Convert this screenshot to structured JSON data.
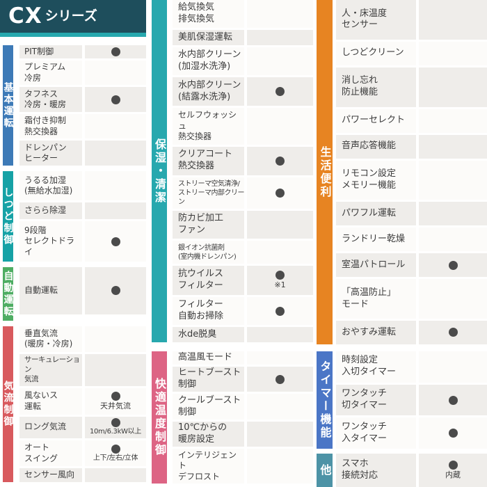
{
  "header": {
    "series_bold": "CX",
    "series_suffix": "シリーズ"
  },
  "colors": {
    "header_bg": "#1e4e5c",
    "accent_underline": "#27a8ae",
    "row_gray": "#efedea",
    "row_white": "#fcfbf9",
    "dot": "#4b4b4b"
  },
  "presence_marker": "●",
  "panels": [
    {
      "container": "left-sections",
      "shade_start": "gray",
      "sections": [
        {
          "id": "basic",
          "label": "基本運転",
          "color": "#3d7ab7",
          "rows": [
            {
              "feature": "PIT制御",
              "dot": true
            },
            {
              "feature": "プレミアム\n冷房",
              "dot": false
            },
            {
              "feature": "タフネス\n冷房・暖房",
              "dot": true
            },
            {
              "feature": "霜付き抑制\n熱交換器",
              "dot": false
            },
            {
              "feature": "ドレンパン\nヒーター",
              "dot": false
            }
          ]
        },
        {
          "id": "humidity",
          "label": "しつど制御",
          "color": "#16a2a6",
          "rows": [
            {
              "feature": "うるる加湿\n(無給水加湿)",
              "dot": false
            },
            {
              "feature": "さらら除湿",
              "dot": false
            },
            {
              "feature": "9段階\nセレクトドライ",
              "dot": true
            }
          ]
        },
        {
          "id": "auto",
          "label": "自動運転",
          "color": "#4ead63",
          "rows": [
            {
              "feature": "自動運転",
              "dot": true
            }
          ]
        },
        {
          "id": "airflow",
          "label": "気流制御",
          "color": "#d85a5e",
          "rows": [
            {
              "feature": "垂直気流\n(暖房・冷房)",
              "dot": false
            },
            {
              "feature": "サーキュレーション\n気流",
              "dot": false
            },
            {
              "feature": "風ないス\n運転",
              "dot": true,
              "note": "天井気流"
            },
            {
              "feature": "ロング気流",
              "dot": true,
              "note": "10m/6.3kW以上"
            },
            {
              "feature": "オート\nスイング",
              "dot": true,
              "note": "上下/左右/立体"
            },
            {
              "feature": "センサー風向",
              "dot": false
            }
          ]
        }
      ]
    },
    {
      "container": "mid-sections",
      "shade_start": "white",
      "sections": [
        {
          "id": "clean",
          "label": "保湿・清潔",
          "color": "#27a8ae",
          "rows": [
            {
              "feature": "給気換気\n排気換気",
              "dot": false
            },
            {
              "feature": "美肌保湿運転",
              "dot": false
            },
            {
              "feature": "水内部クリーン\n(加湿水洗浄)",
              "dot": false
            },
            {
              "feature": "水内部クリーン\n(結露水洗浄)",
              "dot": true
            },
            {
              "feature": "セルフウォッシュ\n熱交換器",
              "dot": false
            },
            {
              "feature": "クリアコート\n熱交換器",
              "dot": true
            },
            {
              "feature": "ストリーマ空気清浄/\nストリーマ内部クリーン",
              "dot": true
            },
            {
              "feature": "防カビ加工\nファン",
              "dot": false
            },
            {
              "feature": "銀イオン抗菌剤\n(室内機ドレンパン)",
              "dot": false
            },
            {
              "feature": "抗ウイルス\nフィルター",
              "dot": true,
              "note": "※1"
            },
            {
              "feature": "フィルター\n自動お掃除",
              "dot": true
            },
            {
              "feature": "水de脱臭",
              "dot": false
            }
          ]
        },
        {
          "id": "comfort",
          "label": "快適温度制御",
          "color": "#dd6484",
          "rows": [
            {
              "feature": "高温風モード",
              "dot": false
            },
            {
              "feature": "ヒートブースト\n制御",
              "dot": true
            },
            {
              "feature": "クールブースト\n制御",
              "dot": false
            },
            {
              "feature": "10℃からの\n暖房設定",
              "dot": false
            },
            {
              "feature": "インテリジェント\nデフロスト",
              "dot": false
            }
          ]
        }
      ]
    },
    {
      "container": "right-sections",
      "shade_start": "gray",
      "sections": [
        {
          "id": "convenient",
          "label": "生活便利",
          "color": "#e78422",
          "rows": [
            {
              "feature": "人・床温度\nセンサー",
              "dot": false
            },
            {
              "feature": "しつどクリーン",
              "dot": false
            },
            {
              "feature": "消し忘れ\n防止機能",
              "dot": false
            },
            {
              "feature": "パワーセレクト",
              "dot": false
            },
            {
              "feature": "音声応答機能",
              "dot": false
            },
            {
              "feature": "リモコン設定\nメモリー機能",
              "dot": false
            },
            {
              "feature": "パワフル運転",
              "dot": false
            },
            {
              "feature": "ランドリー乾燥",
              "dot": false
            },
            {
              "feature": "室温パトロール",
              "dot": true
            },
            {
              "feature": "「高温防止」\nモード",
              "dot": false
            },
            {
              "feature": "おやすみ運転",
              "dot": true
            }
          ]
        },
        {
          "id": "timer",
          "label": "タイマー機能",
          "color": "#4b76c6",
          "rows": [
            {
              "feature": "時刻設定\n入切タイマー",
              "dot": false
            },
            {
              "feature": "ワンタッチ\n切タイマー",
              "dot": true
            },
            {
              "feature": "ワンタッチ\n入タイマー",
              "dot": true
            }
          ]
        },
        {
          "id": "other",
          "label": "他",
          "color": "#4d93a6",
          "rows": [
            {
              "feature": "スマホ\n接続対応",
              "dot": true,
              "note": "内蔵"
            }
          ]
        }
      ]
    }
  ]
}
